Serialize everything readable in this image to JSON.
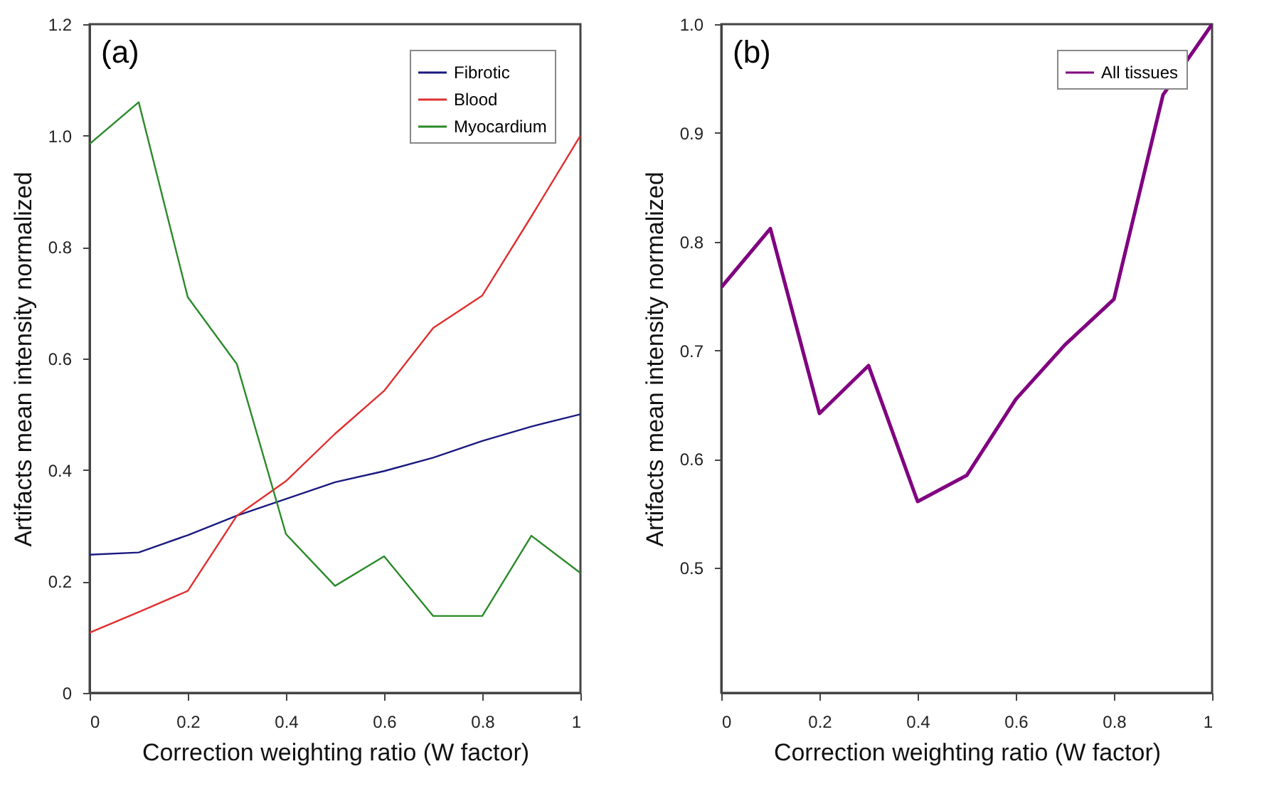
{
  "chart_data": [
    {
      "type": "line",
      "xlabel": "Correction weighting ratio (W factor)",
      "ylabel": "Artifacts mean intensity normalized",
      "annotations": [
        "(a)"
      ],
      "x": [
        0,
        0.1,
        0.2,
        0.3,
        0.4,
        0.5,
        0.6,
        0.7,
        0.8,
        0.9,
        1
      ],
      "series": [
        {
          "name": "Fibrotic",
          "color": "#1a1a80",
          "values": [
            0.248,
            0.252,
            0.283,
            0.318,
            0.348,
            0.378,
            0.398,
            0.422,
            0.452,
            0.478,
            0.5
          ]
        },
        {
          "name": "Blood",
          "color": "#e03030",
          "values": [
            0.108,
            0.145,
            0.183,
            0.318,
            0.38,
            0.465,
            0.542,
            0.655,
            0.713,
            0.855,
            1.0
          ]
        },
        {
          "name": "Myocardium",
          "color": "#2a8a2a",
          "values": [
            0.985,
            1.06,
            0.71,
            0.59,
            0.285,
            0.192,
            0.245,
            0.138,
            0.138,
            0.282,
            0.215
          ]
        }
      ],
      "xlim": [
        0,
        1
      ],
      "xticks": [
        0,
        0.2,
        0.4,
        0.6,
        0.8,
        1
      ],
      "ylim": [
        0,
        1.2
      ],
      "yticks": [
        0,
        0.2,
        0.4,
        0.6,
        0.8,
        {
          "value": 1,
          "label": "1.0"
        },
        1.2
      ],
      "grid": false,
      "legend": "top right",
      "marker": "none",
      "line_style": "solid"
    },
    {
      "type": "line",
      "xlabel": "Correction weighting ratio (W factor)",
      "ylabel": "Artifacts mean intensity normalized",
      "annotations": [
        "(b)"
      ],
      "x": [
        0,
        0.1,
        0.2,
        0.3,
        0.4,
        0.5,
        0.6,
        0.7,
        0.8,
        0.9,
        1
      ],
      "series": [
        {
          "name": "All tissues",
          "color": "#800080",
          "values": [
            0.758,
            0.812,
            0.642,
            0.686,
            0.561,
            0.585,
            0.655,
            0.705,
            0.747,
            0.935,
            1.0
          ]
        }
      ],
      "xlim": [
        0,
        1
      ],
      "xticks": [
        0,
        0.2,
        0.4,
        0.6,
        0.8,
        1
      ],
      "ylim": [
        0.385,
        1.0
      ],
      "yticks": [
        0.5,
        0.6,
        0.7,
        0.8,
        0.9,
        {
          "value": 1,
          "label": "1.0"
        }
      ],
      "grid": false,
      "legend": "top right",
      "marker": "none",
      "line_style": "solid"
    }
  ]
}
